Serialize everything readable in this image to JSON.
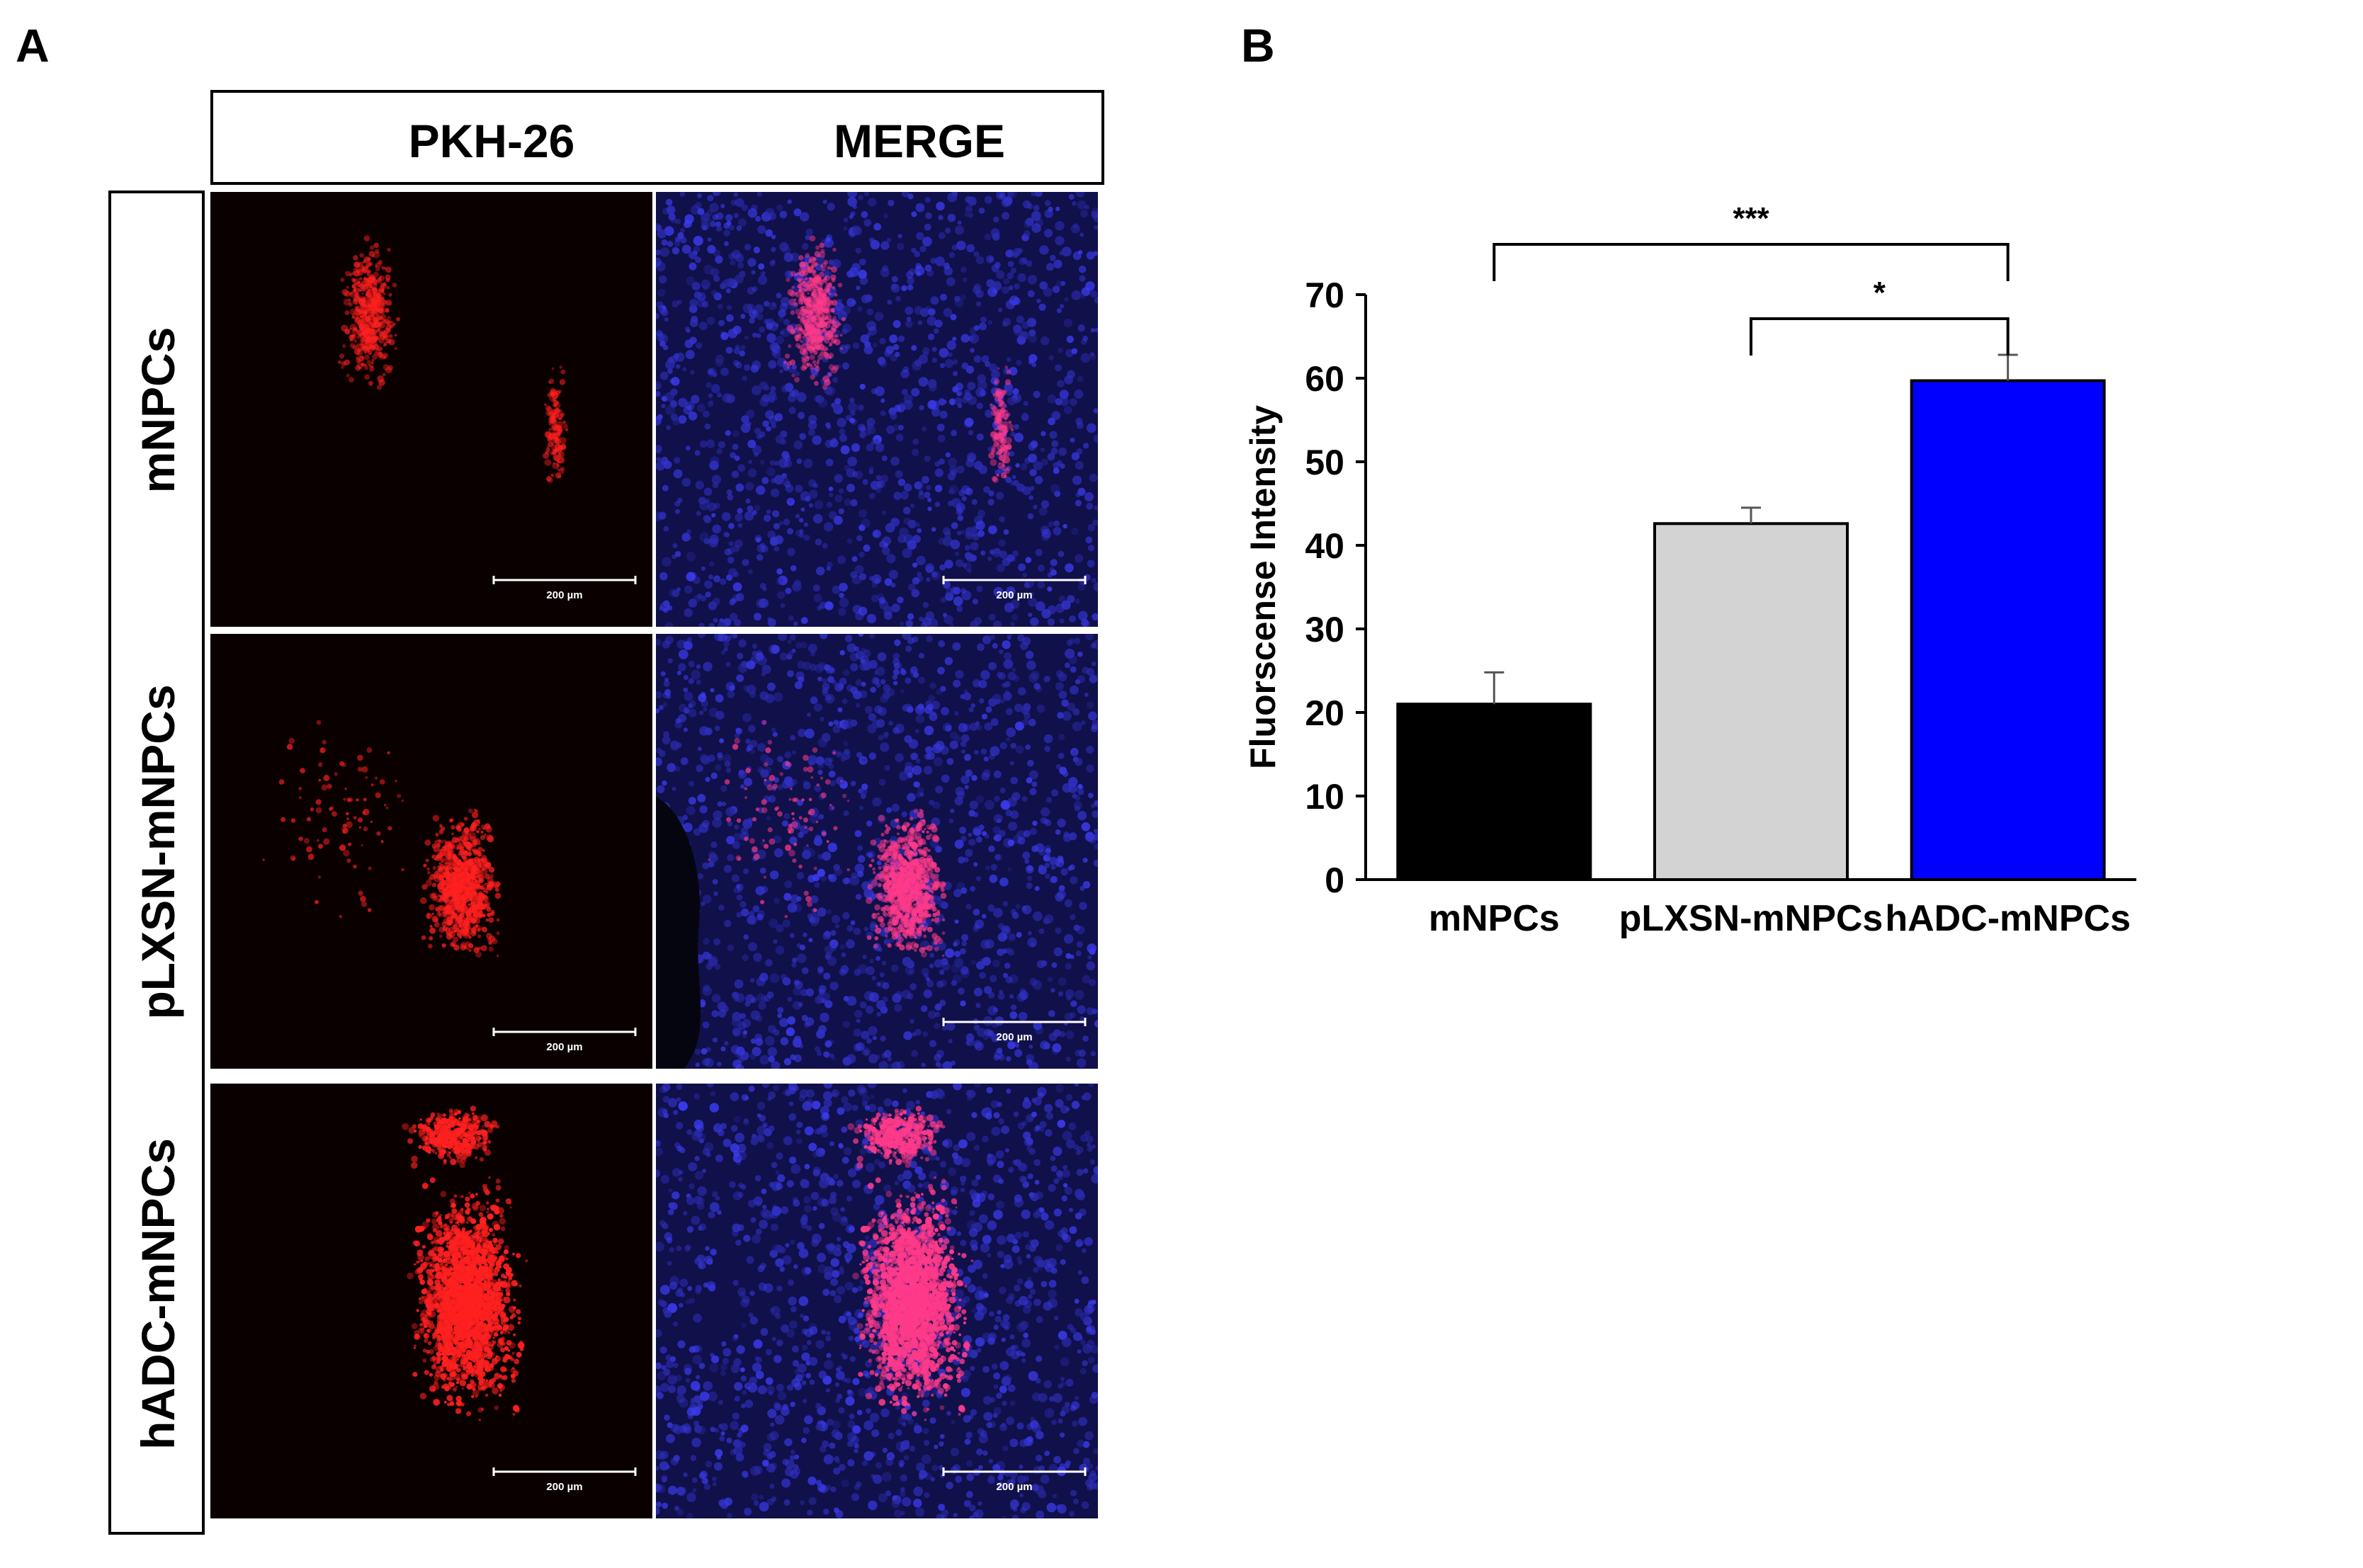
{
  "panel_a": {
    "letter": "A",
    "columns": [
      "PKH-26",
      "MERGE"
    ],
    "rows": [
      "mNPCs",
      "pLXSN-mNPCs",
      "hADC-mNPCs"
    ],
    "scale_bar_label": "200 µm",
    "colors": {
      "pkh26_stain": "#ff2020",
      "nucleus_stain": "#2a2ee0",
      "background": "#000000"
    }
  },
  "panel_b": {
    "letter": "B"
  },
  "chart_data": {
    "type": "bar",
    "categories": [
      "mNPCs",
      "pLXSN-mNPCs",
      "hADC-mNPCs"
    ],
    "values": [
      21,
      42.6,
      59.7
    ],
    "errors": [
      3.8,
      1.9,
      3.1
    ],
    "colors": [
      "#000000",
      "#d3d3d3",
      "#0000ff"
    ],
    "ylabel": "Fluorscense Intensity",
    "xlabel": "",
    "ylim": [
      0,
      70
    ],
    "yticks": [
      0,
      10,
      20,
      30,
      40,
      50,
      60,
      70
    ],
    "grid": false,
    "significance": [
      {
        "from": 0,
        "to": 2,
        "label": "***"
      },
      {
        "from": 1,
        "to": 2,
        "label": "*"
      }
    ]
  }
}
